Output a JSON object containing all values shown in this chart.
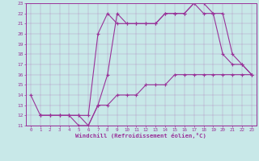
{
  "xlabel": "Windchill (Refroidissement éolien,°C)",
  "bg_color": "#c8e8e8",
  "line_color": "#993399",
  "xlim": [
    -0.5,
    23.5
  ],
  "ylim": [
    11,
    23
  ],
  "xticks": [
    0,
    1,
    2,
    3,
    4,
    5,
    6,
    7,
    8,
    9,
    10,
    11,
    12,
    13,
    14,
    15,
    16,
    17,
    18,
    19,
    20,
    21,
    22,
    23
  ],
  "yticks": [
    11,
    12,
    13,
    14,
    15,
    16,
    17,
    18,
    19,
    20,
    21,
    22,
    23
  ],
  "line1_x": [
    0,
    1,
    2,
    3,
    4,
    5,
    6,
    7,
    8,
    9,
    10,
    11,
    12,
    13,
    14,
    15,
    16,
    17,
    18,
    19,
    20,
    21,
    22,
    23
  ],
  "line1_y": [
    14,
    12,
    12,
    12,
    12,
    12,
    12,
    20,
    22,
    21,
    21,
    21,
    21,
    21,
    22,
    22,
    22,
    23,
    22,
    22,
    18,
    17,
    17,
    16
  ],
  "line2_x": [
    1,
    2,
    3,
    4,
    5,
    6,
    7,
    8,
    9,
    10,
    11,
    12,
    13,
    14,
    15,
    16,
    17,
    18,
    19,
    20,
    21,
    22,
    23
  ],
  "line2_y": [
    12,
    12,
    12,
    12,
    12,
    11,
    13,
    16,
    22,
    21,
    21,
    21,
    21,
    22,
    22,
    22,
    23,
    23,
    22,
    22,
    18,
    17,
    16
  ],
  "line3_x": [
    1,
    2,
    3,
    4,
    5,
    6,
    7,
    8,
    9,
    10,
    11,
    12,
    13,
    14,
    15,
    16,
    17,
    18,
    19,
    20,
    21,
    22,
    23
  ],
  "line3_y": [
    12,
    12,
    12,
    12,
    11,
    11,
    13,
    13,
    14,
    14,
    14,
    15,
    15,
    15,
    16,
    16,
    16,
    16,
    16,
    16,
    16,
    16,
    16
  ]
}
